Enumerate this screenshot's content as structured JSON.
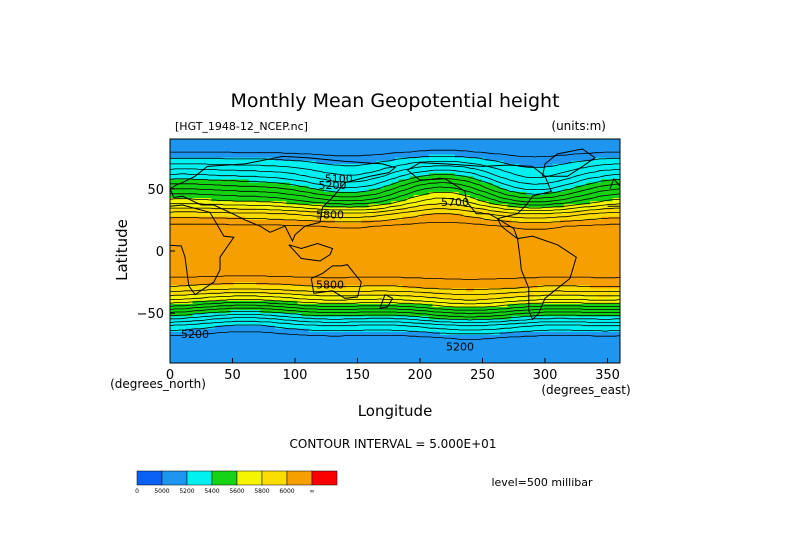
{
  "chart_data": {
    "type": "heatmap",
    "title": "Monthly Mean Geopotential height",
    "file_label": "[HGT_1948-12_NCEP.nc]",
    "units_label": "(units:m)",
    "xlabel": "Longitude",
    "ylabel": "Latitude",
    "x_unit_label": "(degrees_east)",
    "y_unit_label": "(degrees_north)",
    "xlim": [
      0,
      360
    ],
    "ylim": [
      -90,
      90
    ],
    "x_ticks": [
      0,
      50,
      100,
      150,
      200,
      250,
      300,
      350
    ],
    "y_ticks": [
      50,
      0,
      -50
    ],
    "y_tick_labels": [
      "50",
      "0",
      "−50"
    ],
    "contour_interval": "CONTOUR INTERVAL = 5.000E+01",
    "level": "level=500 millibar",
    "colorbar": {
      "labels": [
        "0",
        "5000",
        "5200",
        "5400",
        "5600",
        "5800",
        "6000",
        "∞"
      ],
      "colors": [
        "#0a5ff5",
        "#1e96f0",
        "#00f0f0",
        "#14d214",
        "#f5f500",
        "#fadc00",
        "#f5a000",
        "#fa0000"
      ]
    },
    "zonal_profile": {
      "lat": [
        90,
        80,
        70,
        60,
        50,
        40,
        30,
        20,
        10,
        0,
        -10,
        -20,
        -30,
        -40,
        -50,
        -60,
        -70,
        -80,
        -90
      ],
      "height_m": [
        5100,
        5140,
        5230,
        5330,
        5450,
        5580,
        5750,
        5860,
        5870,
        5870,
        5870,
        5860,
        5790,
        5640,
        5440,
        5250,
        5130,
        5110,
        5100
      ]
    },
    "contour_labels": [
      {
        "text": "5100",
        "lon": 135,
        "lat": 55
      },
      {
        "text": "5200",
        "lon": 130,
        "lat": 50
      },
      {
        "text": "5700",
        "lon": 228,
        "lat": 36
      },
      {
        "text": "5800",
        "lon": 128,
        "lat": 26
      },
      {
        "text": "5800",
        "lon": 128,
        "lat": -30
      },
      {
        "text": "5200",
        "lon": 20,
        "lat": -70
      },
      {
        "text": "5200",
        "lon": 232,
        "lat": -80
      }
    ],
    "grid": false
  }
}
